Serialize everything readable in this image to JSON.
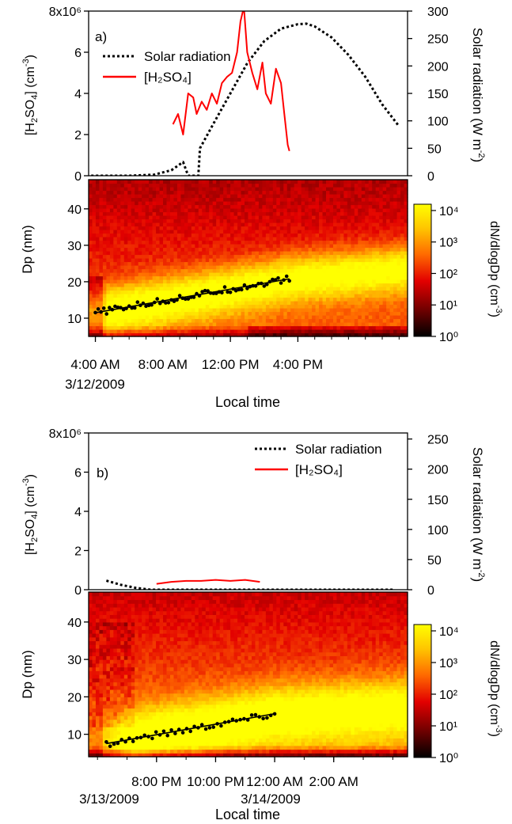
{
  "chart_data": [
    {
      "panel": "a)",
      "type": "line",
      "series": [
        {
          "name": "Solar radiation",
          "axis": "right",
          "style": "dotted",
          "color": "#000000",
          "points": [
            [
              1.5,
              0
            ],
            [
              4,
              0
            ],
            [
              6,
              0
            ],
            [
              7.5,
              2
            ],
            [
              8.5,
              10
            ],
            [
              9.2,
              25
            ],
            [
              9.5,
              0
            ],
            [
              10.1,
              0
            ],
            [
              10.2,
              50
            ],
            [
              11,
              95
            ],
            [
              12,
              150
            ],
            [
              13,
              205
            ],
            [
              14,
              245
            ],
            [
              15,
              268
            ],
            [
              16,
              276
            ],
            [
              16.5,
              277
            ],
            [
              17,
              272
            ],
            [
              18,
              252
            ],
            [
              19,
              220
            ],
            [
              20,
              180
            ],
            [
              21,
              130
            ],
            [
              22,
              90
            ]
          ]
        },
        {
          "name": "[H₂SO₄]",
          "axis": "left",
          "style": "solid",
          "color": "#ff0000",
          "points": [
            [
              8.6,
              2.5
            ],
            [
              8.9,
              3.0
            ],
            [
              9.2,
              2.0
            ],
            [
              9.5,
              4.0
            ],
            [
              9.8,
              3.8
            ],
            [
              10.0,
              3.0
            ],
            [
              10.3,
              3.6
            ],
            [
              10.6,
              3.2
            ],
            [
              10.9,
              4.0
            ],
            [
              11.2,
              3.5
            ],
            [
              11.5,
              4.5
            ],
            [
              11.8,
              4.8
            ],
            [
              12.1,
              5.0
            ],
            [
              12.4,
              6.0
            ],
            [
              12.6,
              7.5
            ],
            [
              12.8,
              8.2
            ],
            [
              13.0,
              6.0
            ],
            [
              13.3,
              5.0
            ],
            [
              13.6,
              4.2
            ],
            [
              13.9,
              5.5
            ],
            [
              14.1,
              4.0
            ],
            [
              14.4,
              3.5
            ],
            [
              14.7,
              5.2
            ],
            [
              15.0,
              4.5
            ],
            [
              15.2,
              3.0
            ],
            [
              15.4,
              1.5
            ],
            [
              15.5,
              1.2
            ]
          ]
        }
      ],
      "y_left": {
        "range": [
          0,
          8000000
        ],
        "ticks": [
          "0",
          "2",
          "4",
          "6",
          "8x10⁶"
        ]
      },
      "y_right": {
        "range": [
          0,
          300
        ],
        "ticks": [
          "0",
          "50",
          "100",
          "150",
          "200",
          "250",
          "300"
        ]
      },
      "x_ticks": [
        "4:00 AM",
        "8:00 AM",
        "12:00 PM",
        "4:00 PM"
      ],
      "x_date": "3/12/2009",
      "xlabel": "Local time",
      "heatmap": {
        "type": "heatmap",
        "y_range": [
          5,
          48
        ],
        "y_ticks": [
          "10",
          "20",
          "30",
          "40"
        ],
        "ylabel": "Dp (nm)",
        "colorbar": {
          "label": "dN/dlogDp (cm⁻³)",
          "ticks": [
            "10⁰",
            "10¹",
            "10²",
            "10³",
            "10⁴"
          ],
          "range_log10": [
            0,
            4.2
          ]
        },
        "growth_fit": {
          "start": [
            4.0,
            11.5
          ],
          "end": [
            15.5,
            20.8
          ]
        }
      }
    },
    {
      "panel": "b)",
      "type": "line",
      "series": [
        {
          "name": "Solar radiation",
          "axis": "right",
          "style": "dotted",
          "color": "#000000",
          "points": [
            [
              18.3,
              15
            ],
            [
              18.8,
              8
            ],
            [
              19.3,
              3
            ],
            [
              19.8,
              0
            ],
            [
              28,
              0
            ]
          ]
        },
        {
          "name": "[H₂SO₄]",
          "axis": "left",
          "style": "solid",
          "color": "#ff0000",
          "points": [
            [
              20,
              0.3
            ],
            [
              20.5,
              0.4
            ],
            [
              21,
              0.45
            ],
            [
              21.5,
              0.45
            ],
            [
              22,
              0.5
            ],
            [
              22.5,
              0.45
            ],
            [
              23,
              0.5
            ],
            [
              23.5,
              0.4
            ]
          ]
        }
      ],
      "y_left": {
        "range": [
          0,
          8000000
        ],
        "ticks": [
          "0",
          "2",
          "4",
          "6",
          "8x10⁶"
        ]
      },
      "y_right": {
        "range": [
          0,
          260
        ],
        "ticks": [
          "0",
          "50",
          "100",
          "150",
          "200",
          "250"
        ]
      },
      "x_ticks": [
        "8:00 PM",
        "10:00 PM",
        "12:00 AM",
        "2:00 AM"
      ],
      "x_dates": [
        "3/13/2009",
        "3/14/2009"
      ],
      "xlabel": "Local time",
      "heatmap": {
        "type": "heatmap",
        "y_range": [
          4,
          48
        ],
        "y_ticks": [
          "10",
          "20",
          "30",
          "40"
        ],
        "ylabel": "Dp (nm)",
        "colorbar": {
          "label": "dN/dlogDp (cm⁻³)",
          "ticks": [
            "10⁰",
            "10¹",
            "10²",
            "10³",
            "10⁴"
          ],
          "range_log10": [
            0,
            4.2
          ]
        },
        "growth_fit": {
          "start": [
            18.3,
            7.5
          ],
          "end": [
            24.0,
            15.5
          ]
        }
      }
    }
  ]
}
